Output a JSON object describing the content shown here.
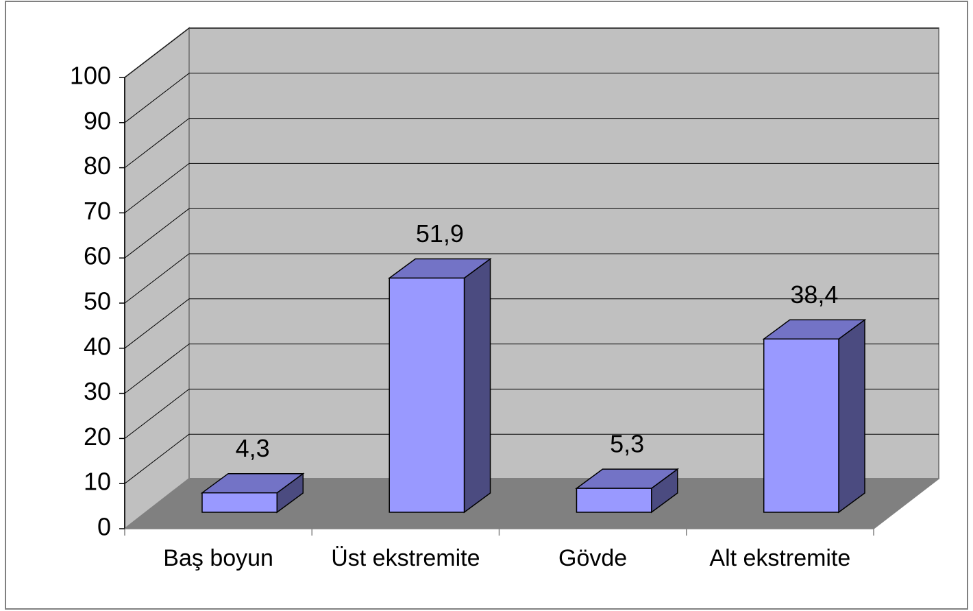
{
  "chart_data": {
    "type": "bar3d",
    "categories": [
      "Baş boyun",
      "Üst ekstremite",
      "Gövde",
      "Alt ekstremite"
    ],
    "values": [
      4.3,
      51.9,
      5.3,
      38.4
    ],
    "value_labels": [
      "4,3",
      "51,9",
      "5,3",
      "38,4"
    ],
    "color": "#9999ff",
    "ylim": [
      0,
      100
    ],
    "yticks": [
      0,
      10,
      20,
      30,
      40,
      50,
      60,
      70,
      80,
      90,
      100
    ],
    "grid": true
  }
}
